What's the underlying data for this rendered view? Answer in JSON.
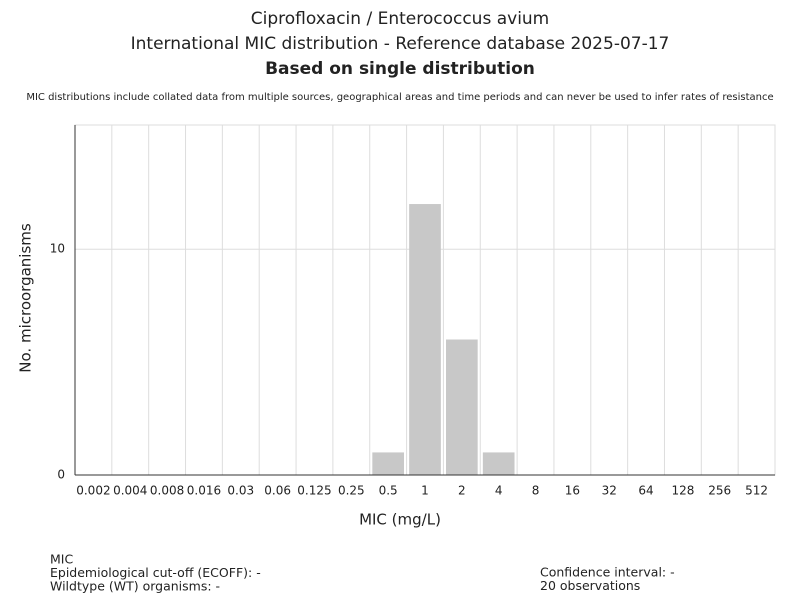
{
  "chart_data": {
    "type": "bar",
    "title": "Ciprofloxacin / Enterococcus avium",
    "subtitle": "International MIC distribution - Reference database 2025-07-17",
    "heading": "Based on single distribution",
    "note": "MIC distributions include collated data from multiple sources, geographical areas and time periods and can never be used to infer rates of resistance",
    "x_label": "MIC (mg/L)",
    "y_label": "No. microorganisms",
    "categories": [
      "0.002",
      "0.004",
      "0.008",
      "0.016",
      "0.03",
      "0.06",
      "0.125",
      "0.25",
      "0.5",
      "1",
      "2",
      "4",
      "8",
      "16",
      "32",
      "64",
      "128",
      "256",
      "512"
    ],
    "values": [
      0,
      0,
      0,
      0,
      0,
      0,
      0,
      0,
      1,
      12,
      6,
      1,
      0,
      0,
      0,
      0,
      0,
      0,
      0
    ],
    "color": "#c8c8c8",
    "ylim": [
      0,
      15.5
    ],
    "yticks": [
      0,
      10
    ],
    "grid": true,
    "footer_left": [
      "MIC",
      "Epidemiological cut-off (ECOFF): -",
      "Wildtype (WT) organisms:  -"
    ],
    "footer_right": [
      "Confidence interval: -",
      "20 observations"
    ]
  }
}
